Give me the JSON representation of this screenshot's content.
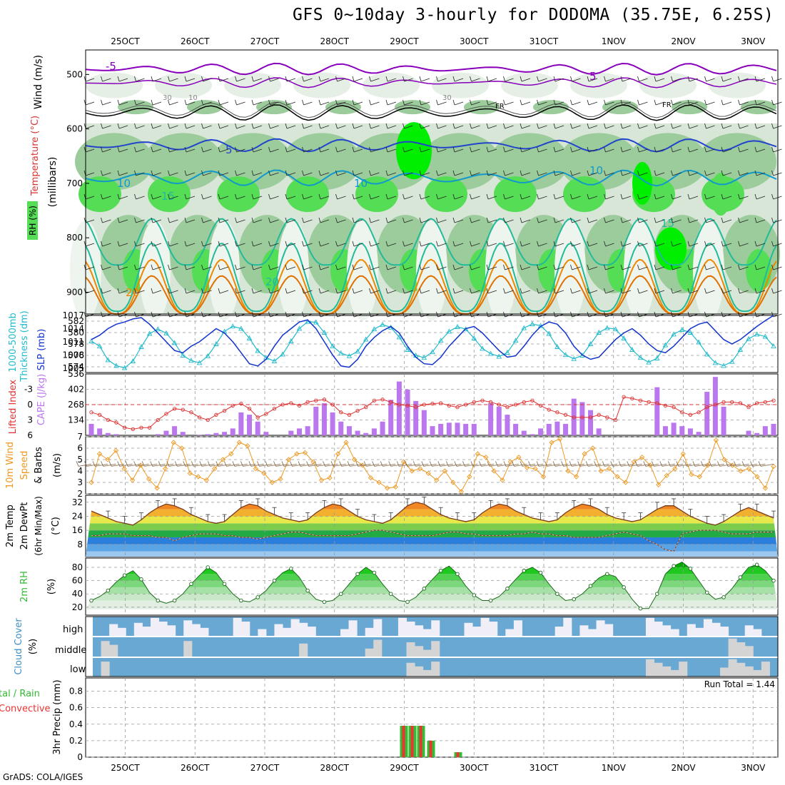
{
  "title": "GFS 0~10day 3-hourly for DODOMA (35.75E, 6.25S)",
  "footer": "GrADS: COLA/IGES",
  "run_total": "Run Total = 1.44",
  "x_ticks": [
    "25OCT",
    "26OCT",
    "27OCT",
    "28OCT",
    "29OCT",
    "30OCT",
    "31OCT",
    "1NOV",
    "2NOV",
    "3NOV"
  ],
  "colors": {
    "rh_light": "#d8e6d8",
    "rh_mid": "#9ccc9c",
    "rh_green": "#55dd55",
    "rh_bright": "#00ee00",
    "temp_purple": "#8800bb",
    "temp_blue": "#2244cc",
    "temp_cyan": "#1199cc",
    "temp_teal": "#22bb99",
    "temp_orange": "#ee8800",
    "temp_magenta": "#dd0077",
    "slp": "#1133cc",
    "thickness": "#22bbcc",
    "lifted": "#dd3333",
    "cape": "#bb77ee",
    "wind10": "#ee9922",
    "cloud_blue": "#6aa8d4",
    "cloud_white": "#f0eef6",
    "cloud_gray": "#d4d4d4",
    "precip_green": "#33bb33",
    "precip_red": "#ee3333"
  },
  "labels": {
    "p1_wind": "Wind (m/s)",
    "p1_temp": "Temperature (°C)",
    "p1_rh": "RH (%)",
    "p1_unit": "(millibars)",
    "p2_thick": "1000-500mb",
    "p2_thick2": "Thickness (dm)",
    "p2_slp": "SLP (mb)",
    "p3_li": "Lifted Index",
    "p3_cape": "CAPE (J/kg)",
    "p4_a": "10m Wind",
    "p4_b": "Speed",
    "p4_c": "& Barbs",
    "p4_unit": "(m/s)",
    "p5_a": "2m Temp",
    "p5_b": "2m DewPt",
    "p5_c": "(6hr Min/Max)",
    "p5_unit": "(°C)",
    "p6_a": "2m RH",
    "p6_unit": "(%)",
    "p7_a": "Cloud Cover",
    "p7_unit": "(%)",
    "p7_high": "high",
    "p7_mid": "middle",
    "p7_low": "low",
    "p8_a": "tal / Rain",
    "p8_b": "Convective",
    "p8_c": "3hr Precip (mm)"
  },
  "contour_labels": {
    "t_m5": "-5",
    "t_5a": "5",
    "t_5b": "5",
    "t_10a": "10",
    "t_10b": "10",
    "t_10c": "10",
    "t_15a": "15",
    "t_15b": "15",
    "t_20a": "20",
    "t_20b": "20",
    "rh30a": "30",
    "rh10": "10",
    "rh30b": "30",
    "fr1": "FR",
    "fr2": "FR"
  },
  "chart_data": [
    {
      "type": "heatmap",
      "name": "pressure-time cross section",
      "y_axis": "millibars",
      "y_ticks": [
        500,
        600,
        700,
        800,
        900
      ],
      "legend": "RH (%)"
    },
    {
      "type": "line",
      "y_ticks_thickness": [
        574,
        576,
        578,
        580,
        582
      ],
      "y_ticks_slp": [
        1005,
        1008,
        1011,
        1014,
        1017
      ],
      "series": [
        {
          "name": "1000-500mb Thickness (dm)",
          "values": [
            578.5,
            577.6,
            575.2,
            574.2,
            573.8,
            575.0,
            577.5,
            579.8,
            580.6,
            579.9,
            578.2,
            576.0,
            575.1,
            574.7,
            575.9,
            578.0,
            580.2,
            581.1,
            580.7,
            579.0,
            576.8,
            575.6,
            575.0,
            576.2,
            578.5,
            580.7,
            581.9,
            581.8,
            580.0,
            577.6,
            576.4,
            575.9,
            576.7,
            578.8,
            580.6,
            581.4,
            580.9,
            579.2,
            577.0,
            576.0,
            575.6,
            576.6,
            578.6,
            580.2,
            581.0,
            580.6,
            579.0,
            577.2,
            576.3,
            575.8,
            576.5,
            578.6,
            580.8,
            581.5,
            581.2,
            579.8,
            577.5,
            576.1,
            575.4,
            576.0,
            578.0,
            580.0,
            580.8,
            580.6,
            579.0,
            577.0,
            575.6,
            574.8,
            575.5,
            577.8,
            579.7,
            580.5,
            580.0,
            578.3,
            576.2,
            574.7,
            574.2,
            574.9,
            577.0,
            578.9,
            579.7,
            579.3,
            577.6
          ]
        },
        {
          "name": "SLP (mb)",
          "values": [
            1011.5,
            1012.5,
            1014.0,
            1015.0,
            1015.5,
            1016.2,
            1016.5,
            1015.0,
            1013.0,
            1011.0,
            1009.0,
            1008.5,
            1010.0,
            1011.0,
            1012.5,
            1014.0,
            1013.0,
            1011.0,
            1008.5,
            1006.0,
            1005.5,
            1007.0,
            1010.0,
            1012.5,
            1014.0,
            1015.5,
            1016.0,
            1014.0,
            1011.0,
            1008.0,
            1005.5,
            1005.2,
            1007.0,
            1010.0,
            1012.0,
            1013.5,
            1014.5,
            1013.0,
            1010.0,
            1007.5,
            1006.0,
            1005.8,
            1007.5,
            1010.0,
            1012.0,
            1014.0,
            1014.5,
            1013.0,
            1011.0,
            1009.0,
            1007.5,
            1007.8,
            1010.0,
            1012.5,
            1014.5,
            1015.5,
            1015.0,
            1013.0,
            1010.0,
            1008.0,
            1007.0,
            1007.5,
            1009.5,
            1011.5,
            1013.0,
            1014.0,
            1012.5,
            1010.5,
            1009.0,
            1008.5,
            1010.0,
            1012.0,
            1014.0,
            1015.0,
            1015.5,
            1013.5,
            1011.5,
            1010.5,
            1011.5,
            1013.0,
            1014.5,
            1015.8,
            1017.0
          ]
        }
      ]
    },
    {
      "type": "bar",
      "y_ticks_lifted": [
        -3,
        0,
        3,
        6
      ],
      "y_ticks_cape": [
        134,
        268,
        402,
        536
      ],
      "series": [
        {
          "name": "Lifted Index",
          "values": [
            1.5,
            2.0,
            3.0,
            3.5,
            4.5,
            4.8,
            4.5,
            4.5,
            3.0,
            1.8,
            0.8,
            1.0,
            1.5,
            2.5,
            3.0,
            2.0,
            1.2,
            0.2,
            -0.2,
            0.8,
            2.5,
            1.8,
            0.8,
            0.0,
            -0.3,
            0.2,
            -0.5,
            -0.8,
            -1.0,
            0.0,
            1.5,
            2.0,
            1.2,
            0.5,
            -0.8,
            -1.0,
            -0.5,
            0.0,
            0.2,
            0.5,
            0.0,
            -0.2,
            -0.3,
            0.2,
            0.5,
            0.0,
            -0.5,
            -0.8,
            -0.5,
            0.0,
            0.5,
            0.0,
            -0.5,
            -0.8,
            0.2,
            1.0,
            1.5,
            2.0,
            2.5,
            2.5,
            2.5,
            2.0,
            2.5,
            3.0,
            -1.5,
            -1.2,
            -0.8,
            -0.5,
            -0.3,
            0.2,
            0.5,
            1.5,
            2.0,
            1.5,
            0.5,
            0.0,
            -0.5,
            -0.5,
            -0.3,
            0.5,
            -0.3,
            -0.5,
            -0.8
          ]
        },
        {
          "name": "CAPE (J/kg)",
          "values": [
            100,
            60,
            20,
            10,
            0,
            0,
            0,
            0,
            10,
            40,
            80,
            30,
            0,
            5,
            10,
            20,
            30,
            60,
            200,
            180,
            120,
            30,
            0,
            0,
            40,
            60,
            80,
            250,
            280,
            200,
            120,
            80,
            40,
            20,
            60,
            120,
            310,
            470,
            400,
            300,
            220,
            80,
            100,
            110,
            110,
            100,
            100,
            0,
            280,
            250,
            180,
            100,
            40,
            10,
            60,
            100,
            120,
            100,
            320,
            290,
            220,
            60,
            0,
            0,
            0,
            0,
            0,
            0,
            420,
            80,
            110,
            80,
            60,
            30,
            380,
            510,
            250,
            0,
            0,
            40,
            20,
            80,
            100
          ]
        }
      ]
    },
    {
      "type": "line",
      "y_ticks": [
        2,
        3,
        4,
        5,
        6,
        7
      ],
      "series": [
        {
          "name": "10m Wind Speed (m/s)",
          "values": [
            3.0,
            5.5,
            5.0,
            5.8,
            4.2,
            3.2,
            4.5,
            3.3,
            2.5,
            4.2,
            6.5,
            6.0,
            3.8,
            3.5,
            3.2,
            4.2,
            5.0,
            5.5,
            6.5,
            6.2,
            4.2,
            3.8,
            3.0,
            3.3,
            5.0,
            5.5,
            5.6,
            4.8,
            3.2,
            3.4,
            5.5,
            6.5,
            5.0,
            4.5,
            3.4,
            3.0,
            2.5,
            2.6,
            4.8,
            4.0,
            4.2,
            3.8,
            3.2,
            4.0,
            3.0,
            2.2,
            3.5,
            5.5,
            5.2,
            4.0,
            3.2,
            4.8,
            5.2,
            4.3,
            4.2,
            3.5,
            6.5,
            6.8,
            4.0,
            3.5,
            5.5,
            6.0,
            4.0,
            4.2,
            3.5,
            3.0,
            4.8,
            5.2,
            4.5,
            2.8,
            3.6,
            4.2,
            5.5,
            3.7,
            3.5,
            4.5,
            6.7,
            5.0,
            4.5,
            4.0,
            4.2,
            3.5,
            2.5,
            4.4
          ]
        }
      ]
    },
    {
      "type": "area",
      "y_ticks": [
        8,
        16,
        24,
        32
      ],
      "series": [
        {
          "name": "2m Temp",
          "values": [
            27,
            25,
            23,
            21,
            20,
            19,
            22,
            26,
            29,
            31,
            30,
            28,
            25,
            23,
            21,
            20,
            21,
            25,
            29,
            31,
            30,
            27,
            25,
            23,
            22,
            21,
            22,
            26,
            29,
            31,
            30,
            27,
            24,
            22,
            21,
            20,
            22,
            26,
            30,
            32,
            31,
            28,
            25,
            23,
            22,
            21,
            22,
            26,
            29,
            31,
            30,
            27,
            25,
            23,
            22,
            21,
            22,
            26,
            29,
            31,
            30,
            28,
            25,
            23,
            22,
            21,
            22,
            25,
            28,
            30,
            30,
            27,
            24,
            22,
            20,
            19,
            21,
            24,
            27,
            29,
            27,
            25,
            23
          ]
        },
        {
          "name": "2m DewPt",
          "values": [
            13,
            13,
            14,
            14,
            14,
            13,
            13,
            13,
            12,
            12,
            10,
            12,
            13,
            14,
            14,
            14,
            13,
            13,
            12,
            12,
            11,
            12,
            13,
            14,
            15,
            15,
            14,
            13,
            13,
            13,
            13,
            13,
            14,
            15,
            16,
            16,
            15,
            14,
            13,
            13,
            13,
            13,
            14,
            15,
            15,
            14,
            14,
            13,
            13,
            13,
            13,
            14,
            14,
            15,
            14,
            14,
            13,
            13,
            12,
            12,
            12,
            12,
            13,
            14,
            15,
            14,
            13,
            10,
            8,
            5,
            4,
            14,
            15,
            16,
            16,
            16,
            15,
            14,
            14,
            14,
            15,
            15,
            15
          ]
        }
      ]
    },
    {
      "type": "area",
      "y_ticks": [
        20,
        40,
        60,
        80
      ],
      "series": [
        {
          "name": "2m RH (%)",
          "values": [
            30,
            36,
            45,
            58,
            68,
            75,
            62,
            42,
            30,
            26,
            30,
            40,
            55,
            68,
            80,
            72,
            55,
            40,
            30,
            28,
            35,
            45,
            60,
            72,
            78,
            65,
            45,
            32,
            28,
            30,
            40,
            55,
            70,
            80,
            72,
            55,
            40,
            30,
            28,
            35,
            48,
            62,
            75,
            82,
            70,
            52,
            38,
            30,
            30,
            36,
            48,
            62,
            75,
            80,
            72,
            55,
            40,
            30,
            32,
            40,
            52,
            64,
            70,
            66,
            50,
            32,
            18,
            18,
            40,
            70,
            82,
            88,
            78,
            60,
            42,
            32,
            35,
            48,
            65,
            80,
            84,
            75,
            60
          ]
        }
      ]
    },
    {
      "type": "bar",
      "name": "Cloud Cover",
      "series": [
        {
          "name": "high"
        },
        {
          "name": "middle"
        },
        {
          "name": "low"
        }
      ]
    },
    {
      "type": "bar",
      "title": "Run Total = 1.44",
      "y_ticks": [
        0,
        0.2,
        0.4,
        0.6,
        0.8
      ],
      "series": [
        {
          "name": "Total / Rain",
          "values": [
            0.38,
            0.38,
            0.38,
            0.2,
            0.06
          ]
        }
      ]
    }
  ]
}
